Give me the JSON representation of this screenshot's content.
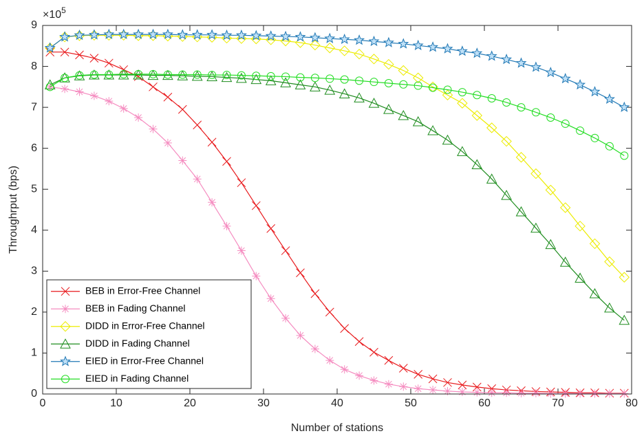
{
  "chart_data": {
    "type": "line",
    "x_label": "Number of stations",
    "y_label": "Throughrput (bps)",
    "y_multiplier": "×10",
    "y_multiplier_exponent": "5",
    "xlim": [
      0,
      80
    ],
    "xticks": [
      0,
      10,
      20,
      30,
      40,
      50,
      60,
      70,
      80
    ],
    "ylim": [
      0,
      9
    ],
    "yticks": [
      0,
      1,
      2,
      3,
      4,
      5,
      6,
      7,
      8,
      9
    ],
    "legend": "lower left",
    "x": [
      1,
      3,
      5,
      7,
      9,
      11,
      13,
      15,
      17,
      19,
      21,
      23,
      25,
      27,
      29,
      31,
      33,
      35,
      37,
      39,
      41,
      43,
      45,
      47,
      49,
      51,
      53,
      55,
      57,
      59,
      61,
      63,
      65,
      67,
      69,
      71,
      73,
      75,
      77,
      79
    ],
    "series": [
      {
        "name": "BEB in Error-Free Channel",
        "color": "#e8191c",
        "marker": "x",
        "values": [
          8.35,
          8.35,
          8.28,
          8.2,
          8.08,
          7.92,
          7.75,
          7.5,
          7.25,
          6.95,
          6.57,
          6.15,
          5.68,
          5.16,
          4.6,
          4.04,
          3.5,
          2.96,
          2.45,
          2.0,
          1.6,
          1.28,
          1.02,
          0.82,
          0.63,
          0.48,
          0.37,
          0.28,
          0.22,
          0.17,
          0.13,
          0.1,
          0.08,
          0.06,
          0.05,
          0.04,
          0.03,
          0.03,
          0.02,
          0.02
        ]
      },
      {
        "name": "BEB in Fading Channel",
        "color": "#f58cc0",
        "marker": "asterisk",
        "values": [
          7.5,
          7.45,
          7.38,
          7.28,
          7.15,
          6.97,
          6.75,
          6.47,
          6.13,
          5.7,
          5.25,
          4.68,
          4.1,
          3.5,
          2.88,
          2.33,
          1.85,
          1.43,
          1.1,
          0.82,
          0.6,
          0.45,
          0.33,
          0.24,
          0.18,
          0.13,
          0.1,
          0.07,
          0.05,
          0.04,
          0.03,
          0.03,
          0.02,
          0.02,
          0.01,
          0.01,
          0.01,
          0.01,
          0.01,
          0.01
        ]
      },
      {
        "name": "DIDD in Error-Free Channel",
        "color": "#ecec00",
        "marker": "diamond",
        "values": [
          8.45,
          8.72,
          8.75,
          8.76,
          8.76,
          8.76,
          8.75,
          8.75,
          8.74,
          8.73,
          8.72,
          8.71,
          8.69,
          8.68,
          8.67,
          8.65,
          8.62,
          8.58,
          8.52,
          8.45,
          8.38,
          8.3,
          8.18,
          8.05,
          7.9,
          7.72,
          7.5,
          7.3,
          7.1,
          6.8,
          6.5,
          6.17,
          5.78,
          5.38,
          4.98,
          4.55,
          4.1,
          3.67,
          3.23,
          2.85
        ]
      },
      {
        "name": "DIDD in Fading Channel",
        "color": "#1e8c1e",
        "marker": "triangle",
        "values": [
          7.55,
          7.72,
          7.77,
          7.79,
          7.79,
          7.79,
          7.79,
          7.78,
          7.78,
          7.77,
          7.76,
          7.75,
          7.73,
          7.71,
          7.68,
          7.65,
          7.6,
          7.55,
          7.5,
          7.42,
          7.33,
          7.23,
          7.1,
          6.95,
          6.8,
          6.65,
          6.43,
          6.2,
          5.92,
          5.6,
          5.25,
          4.85,
          4.45,
          4.05,
          3.65,
          3.22,
          2.83,
          2.45,
          2.1,
          1.8
        ]
      },
      {
        "name": "EIED in Error-Free Channel",
        "color": "#1f77b4",
        "marker": "star",
        "values": [
          8.45,
          8.72,
          8.76,
          8.77,
          8.78,
          8.78,
          8.78,
          8.78,
          8.78,
          8.77,
          8.77,
          8.77,
          8.76,
          8.76,
          8.75,
          8.74,
          8.73,
          8.72,
          8.7,
          8.68,
          8.66,
          8.64,
          8.61,
          8.58,
          8.55,
          8.51,
          8.47,
          8.43,
          8.37,
          8.32,
          8.25,
          8.17,
          8.08,
          7.98,
          7.85,
          7.7,
          7.55,
          7.38,
          7.2,
          7.0
        ]
      },
      {
        "name": "EIED in Fading Channel",
        "color": "#22dd22",
        "marker": "circle",
        "values": [
          7.5,
          7.72,
          7.78,
          7.8,
          7.8,
          7.81,
          7.81,
          7.81,
          7.8,
          7.8,
          7.8,
          7.79,
          7.79,
          7.78,
          7.77,
          7.76,
          7.75,
          7.73,
          7.72,
          7.7,
          7.68,
          7.65,
          7.62,
          7.59,
          7.56,
          7.53,
          7.48,
          7.43,
          7.37,
          7.3,
          7.22,
          7.12,
          7.0,
          6.88,
          6.75,
          6.6,
          6.43,
          6.25,
          6.05,
          5.82
        ]
      }
    ]
  }
}
